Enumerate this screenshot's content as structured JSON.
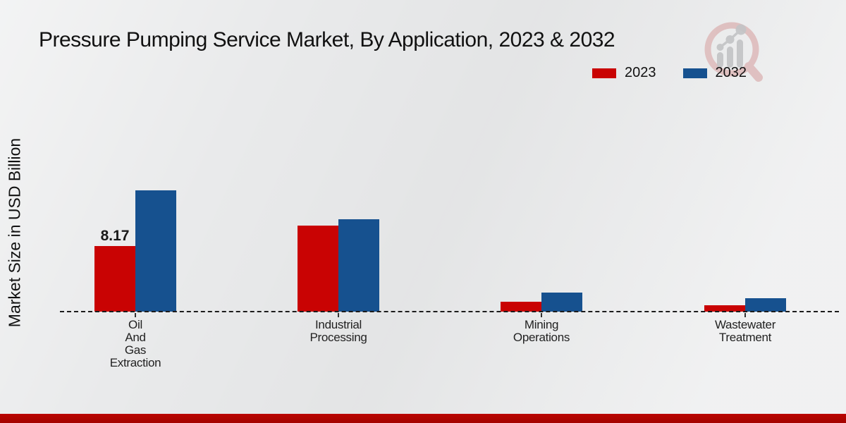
{
  "title": "Pressure Pumping Service Market, By Application, 2023 & 2032",
  "y_axis_label": "Market Size in USD Billion",
  "legend": {
    "items": [
      {
        "label": "2023",
        "color": "#c90303"
      },
      {
        "label": "2032",
        "color": "#16518f"
      }
    ]
  },
  "logo": {
    "name": "magnifier-growth-chart-logo",
    "ring_color": "#dcb6b6",
    "glyph_color": "#c3c4c6"
  },
  "footer": {
    "accent_color": "#bb0400"
  },
  "chart_data": {
    "type": "bar",
    "title": "Pressure Pumping Service Market, By Application, 2023 & 2032",
    "categories": [
      "Oil And Gas Extraction",
      "Industrial Processing",
      "Mining Operations",
      "Wastewater Treatment"
    ],
    "series": [
      {
        "name": "2023",
        "color": "#c90303",
        "values": [
          8.17,
          10.7,
          1.2,
          0.8
        ]
      },
      {
        "name": "2032",
        "color": "#16518f",
        "values": [
          15.1,
          11.5,
          2.4,
          1.7
        ]
      }
    ],
    "data_labels": [
      {
        "series": "2023",
        "category_index": 0,
        "text": "8.17"
      }
    ],
    "xlabel": "",
    "ylabel": "Market Size in USD Billion",
    "ylim": [
      0,
      16
    ],
    "grid": false,
    "legend_position": "top-right",
    "baseline_style": "dashed"
  }
}
